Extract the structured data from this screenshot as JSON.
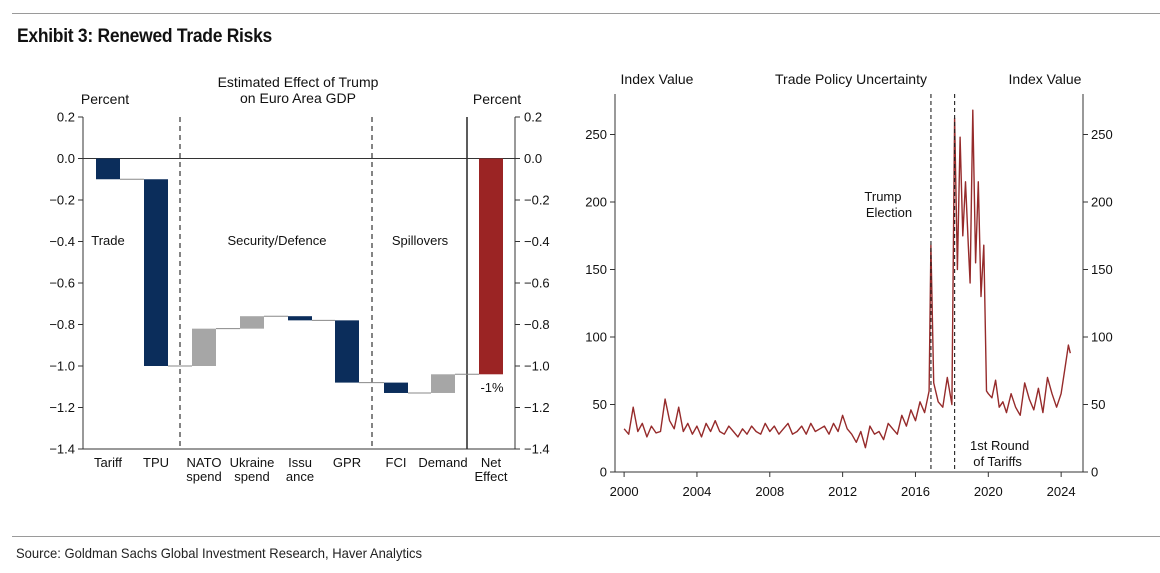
{
  "exhibit_title": "Exhibit 3: Renewed Trade Risks",
  "source": "Source: Goldman Sachs Global Investment Research, Haver Analytics",
  "colors": {
    "navy": "#0b2d5b",
    "gray": "#a6a6a6",
    "red": "#9b2424",
    "line": "#962b2b"
  },
  "chart_data": [
    {
      "type": "bar",
      "subtype": "waterfall",
      "title": "Estimated Effect of Trump\non Euro Area GDP",
      "ylabel_left": "Percent",
      "ylabel_right": "Percent",
      "ylim": [
        -1.4,
        0.2
      ],
      "yticks": [
        "0.2",
        "0.0",
        "−0.2",
        "−0.4",
        "−0.6",
        "−0.8",
        "−1.0",
        "−1.2",
        "−1.4"
      ],
      "ytick_values": [
        0.2,
        0.0,
        -0.2,
        -0.4,
        -0.6,
        -0.8,
        -1.0,
        -1.2,
        -1.4
      ],
      "categories": [
        "Tariff",
        "TPU",
        "NATO\nspend",
        "Ukraine\nspend",
        "Issu\nance",
        "GPR",
        "FCI",
        "Demand",
        "Net\nEffect"
      ],
      "bars": [
        {
          "start": 0.0,
          "end": -0.1,
          "color": "navy"
        },
        {
          "start": -0.1,
          "end": -1.0,
          "color": "navy"
        },
        {
          "start": -1.0,
          "end": -0.82,
          "color": "gray"
        },
        {
          "start": -0.82,
          "end": -0.76,
          "color": "gray"
        },
        {
          "start": -0.76,
          "end": -0.78,
          "color": "navy"
        },
        {
          "start": -0.78,
          "end": -1.08,
          "color": "navy"
        },
        {
          "start": -1.08,
          "end": -1.13,
          "color": "navy"
        },
        {
          "start": -1.13,
          "end": -1.04,
          "color": "gray"
        },
        {
          "start": 0.0,
          "end": -1.04,
          "color": "red"
        }
      ],
      "groups": [
        "Trade",
        "Security/Defence",
        "Spillovers"
      ],
      "net_label": "-1%"
    },
    {
      "type": "line",
      "title": "Trade Policy Uncertainty",
      "ylabel_left": "Index Value",
      "ylabel_right": "Index Value",
      "xlim": [
        1999.5,
        2025.2
      ],
      "ylim": [
        0,
        280
      ],
      "xticks": [
        2000,
        2004,
        2008,
        2012,
        2016,
        2020,
        2024
      ],
      "yticks": [
        0,
        50,
        100,
        150,
        200,
        250
      ],
      "annotations": [
        {
          "text": "Trump\nElection",
          "x": 2016.85
        },
        {
          "text": "1st Round\nof Tariffs",
          "x": 2018.15
        }
      ],
      "series": [
        {
          "x": [
            2000.0,
            2000.25,
            2000.5,
            2000.75,
            2001.0,
            2001.25,
            2001.5,
            2001.75,
            2002.0,
            2002.25,
            2002.5,
            2002.75,
            2003.0,
            2003.25,
            2003.5,
            2003.75,
            2004.0,
            2004.25,
            2004.5,
            2004.75,
            2005.0,
            2005.25,
            2005.5,
            2005.75,
            2006.0,
            2006.25,
            2006.5,
            2006.75,
            2007.0,
            2007.25,
            2007.5,
            2007.75,
            2008.0,
            2008.25,
            2008.5,
            2008.75,
            2009.0,
            2009.25,
            2009.5,
            2009.75,
            2010.0,
            2010.25,
            2010.5,
            2010.75,
            2011.0,
            2011.25,
            2011.5,
            2011.75,
            2012.0,
            2012.25,
            2012.5,
            2012.75,
            2013.0,
            2013.25,
            2013.5,
            2013.75,
            2014.0,
            2014.25,
            2014.5,
            2014.75,
            2015.0,
            2015.25,
            2015.5,
            2015.75,
            2016.0,
            2016.25,
            2016.5,
            2016.75,
            2016.85,
            2017.0,
            2017.25,
            2017.5,
            2017.75,
            2018.0,
            2018.15,
            2018.3,
            2018.45,
            2018.6,
            2018.75,
            2018.9,
            2019.0,
            2019.15,
            2019.3,
            2019.45,
            2019.6,
            2019.75,
            2019.9,
            2020.0,
            2020.2,
            2020.4,
            2020.6,
            2020.8,
            2021.0,
            2021.25,
            2021.5,
            2021.75,
            2022.0,
            2022.25,
            2022.5,
            2022.75,
            2023.0,
            2023.25,
            2023.5,
            2023.75,
            2024.0,
            2024.2,
            2024.4,
            2024.5
          ],
          "y": [
            32,
            28,
            48,
            30,
            36,
            26,
            34,
            29,
            30,
            54,
            38,
            32,
            48,
            30,
            36,
            28,
            34,
            26,
            36,
            30,
            38,
            30,
            28,
            34,
            30,
            26,
            32,
            28,
            34,
            30,
            28,
            36,
            30,
            34,
            28,
            32,
            36,
            28,
            30,
            34,
            28,
            36,
            30,
            32,
            34,
            28,
            36,
            30,
            42,
            32,
            28,
            22,
            30,
            18,
            34,
            28,
            30,
            24,
            36,
            32,
            28,
            42,
            34,
            46,
            38,
            52,
            44,
            60,
            168,
            66,
            52,
            48,
            70,
            50,
            262,
            150,
            248,
            175,
            215,
            168,
            140,
            268,
            155,
            215,
            130,
            168,
            60,
            58,
            55,
            68,
            48,
            52,
            44,
            58,
            48,
            42,
            66,
            54,
            46,
            62,
            44,
            70,
            58,
            48,
            58,
            76,
            94,
            88
          ]
        }
      ]
    }
  ]
}
